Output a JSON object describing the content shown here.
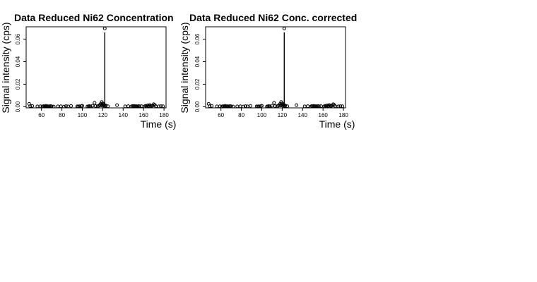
{
  "chart_data": [
    {
      "type": "scatter",
      "title": "Data Reduced Ni62 Concentration",
      "xlabel": "Time (s)",
      "ylabel": "Signal intensity (cps)",
      "xlim": [
        45,
        182
      ],
      "ylim": [
        -0.001,
        0.071
      ],
      "xticks": [
        60,
        80,
        100,
        120,
        140,
        160,
        180
      ],
      "yticks": [
        0.0,
        0.02,
        0.04,
        0.06
      ],
      "ytick_labels": [
        "0.00",
        "0.02",
        "0.04",
        "0.06"
      ],
      "vertical_line": {
        "x": 122,
        "y0": 0.0,
        "y1": 0.066
      },
      "points": {
        "x": [
          48,
          49,
          51,
          56,
          59,
          61,
          62,
          63,
          64,
          65,
          66,
          67,
          68,
          69,
          70,
          72,
          76,
          79,
          82,
          84,
          86,
          89,
          95,
          96,
          97,
          99,
          100,
          105,
          106,
          107,
          108,
          110,
          112,
          113,
          115,
          116,
          117,
          118,
          118.5,
          119,
          119.5,
          120,
          120.5,
          121,
          121.5,
          122,
          122.5,
          123,
          125,
          134,
          142,
          145,
          148,
          149,
          150,
          151,
          152,
          153,
          154,
          155,
          156,
          158,
          161,
          162,
          163,
          164,
          165,
          166,
          167,
          168,
          169,
          170,
          171,
          172,
          175,
          177,
          179
        ],
        "y": [
          0.0025,
          0.0005,
          0.0007,
          0.0003,
          0.0004,
          0.0002,
          0.0005,
          0.0002,
          0.0008,
          0.0003,
          0.0005,
          0.0002,
          0.0004,
          0.0006,
          0.0003,
          0.0002,
          0.0003,
          0.0004,
          0.0002,
          0.0005,
          0.0003,
          0.0007,
          0.0003,
          0.0002,
          0.0004,
          0.0005,
          0.0009,
          0.0002,
          0.0004,
          0.0006,
          0.0003,
          0.0009,
          0.0035,
          0.0006,
          0.0004,
          0.0008,
          0.0015,
          0.0025,
          0.0012,
          0.0042,
          0.0018,
          0.0028,
          0.0009,
          0.0022,
          0.0013,
          0.0695,
          0.0006,
          0.0011,
          0.0004,
          0.0014,
          0.0003,
          0.0005,
          0.0002,
          0.0006,
          0.0004,
          0.0007,
          0.0003,
          0.0005,
          0.0002,
          0.0006,
          0.0004,
          0.0005,
          0.0003,
          0.0008,
          0.0004,
          0.0012,
          0.0006,
          0.0015,
          0.0009,
          0.0007,
          0.0011,
          0.0022,
          0.0015,
          0.0004,
          0.0003,
          0.0005,
          0.0004
        ]
      }
    },
    {
      "type": "scatter",
      "title": "Data Reduced Ni62 Conc. corrected",
      "xlabel": "Time (s)",
      "ylabel": "Signal intensity (cps)",
      "xlim": [
        45,
        182
      ],
      "ylim": [
        -0.001,
        0.071
      ],
      "xticks": [
        60,
        80,
        100,
        120,
        140,
        160,
        180
      ],
      "yticks": [
        0.0,
        0.02,
        0.04,
        0.06
      ],
      "ytick_labels": [
        "0.00",
        "0.02",
        "0.04",
        "0.06"
      ],
      "vertical_line": {
        "x": 122,
        "y0": 0.0,
        "y1": 0.066
      },
      "points": {
        "x": [
          48,
          49,
          51,
          56,
          59,
          61,
          62,
          63,
          64,
          65,
          66,
          67,
          68,
          69,
          70,
          72,
          76,
          79,
          82,
          84,
          86,
          89,
          95,
          96,
          97,
          99,
          100,
          105,
          106,
          107,
          108,
          110,
          112,
          113,
          115,
          116,
          117,
          118,
          118.5,
          119,
          119.5,
          120,
          120.5,
          121,
          121.5,
          122,
          122.5,
          123,
          125,
          134,
          142,
          145,
          148,
          149,
          150,
          151,
          152,
          153,
          154,
          155,
          156,
          158,
          161,
          162,
          163,
          164,
          165,
          166,
          167,
          168,
          169,
          170,
          171,
          172,
          175,
          177,
          179
        ],
        "y": [
          0.0025,
          0.0005,
          0.0007,
          0.0003,
          0.0004,
          0.0002,
          0.0005,
          0.0002,
          0.0008,
          0.0003,
          0.0005,
          0.0002,
          0.0004,
          0.0006,
          0.0003,
          0.0002,
          0.0003,
          0.0004,
          0.0002,
          0.0005,
          0.0003,
          0.0007,
          0.0003,
          0.0002,
          0.0004,
          0.0005,
          0.0009,
          0.0002,
          0.0004,
          0.0006,
          0.0003,
          0.0009,
          0.0035,
          0.0006,
          0.0004,
          0.0008,
          0.0015,
          0.0025,
          0.0012,
          0.0042,
          0.0018,
          0.0028,
          0.0009,
          0.0022,
          0.0013,
          0.0695,
          0.0006,
          0.0011,
          0.0004,
          0.0014,
          0.0003,
          0.0005,
          0.0002,
          0.0006,
          0.0004,
          0.0007,
          0.0003,
          0.0005,
          0.0002,
          0.0006,
          0.0004,
          0.0005,
          0.0003,
          0.0008,
          0.0004,
          0.0012,
          0.0006,
          0.0015,
          0.0009,
          0.0007,
          0.0011,
          0.0022,
          0.0015,
          0.0004,
          0.0003,
          0.0005,
          0.0004
        ]
      }
    }
  ]
}
